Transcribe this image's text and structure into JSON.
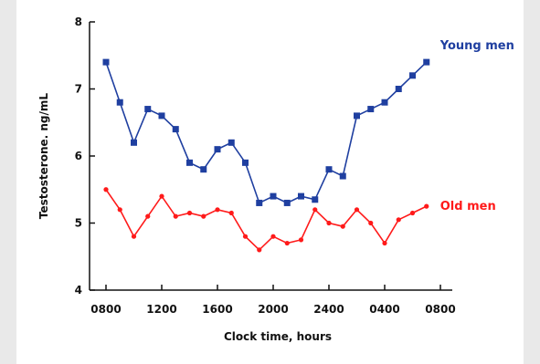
{
  "chart_data": {
    "type": "line",
    "xlabel": "Clock time, hours",
    "ylabel": "Testosterone. ng/mL",
    "ylim": [
      4,
      8
    ],
    "x_ticks": [
      "0800",
      "1200",
      "1600",
      "2000",
      "2400",
      "0400",
      "0800"
    ],
    "y_ticks": [
      "4",
      "5",
      "6",
      "7",
      "8"
    ],
    "x_hours": [
      0,
      1,
      2,
      3,
      4,
      5,
      6,
      7,
      8,
      9,
      10,
      11,
      12,
      13,
      14,
      15,
      16,
      17,
      18,
      19,
      20,
      21,
      22,
      23
    ],
    "x_note": "hours after 0800",
    "grid": false,
    "legend": "inline labels at right end of each series",
    "series": [
      {
        "name": "Young men",
        "color": "#1f3fa0",
        "marker": "square",
        "values": [
          7.4,
          6.8,
          6.2,
          6.7,
          6.6,
          6.4,
          5.9,
          5.8,
          6.1,
          6.2,
          5.9,
          5.3,
          5.4,
          5.3,
          5.4,
          5.35,
          5.8,
          5.7,
          6.6,
          6.7,
          6.8,
          7.0,
          7.2,
          7.4
        ]
      },
      {
        "name": "Old men",
        "color": "#ff1a1a",
        "marker": "circle",
        "values": [
          5.5,
          5.2,
          4.8,
          5.1,
          5.4,
          5.1,
          5.15,
          5.1,
          5.2,
          5.15,
          4.8,
          4.6,
          4.8,
          4.7,
          4.75,
          5.2,
          5.0,
          4.95,
          5.2,
          5.0,
          4.7,
          5.05,
          5.15,
          5.25
        ]
      }
    ]
  }
}
